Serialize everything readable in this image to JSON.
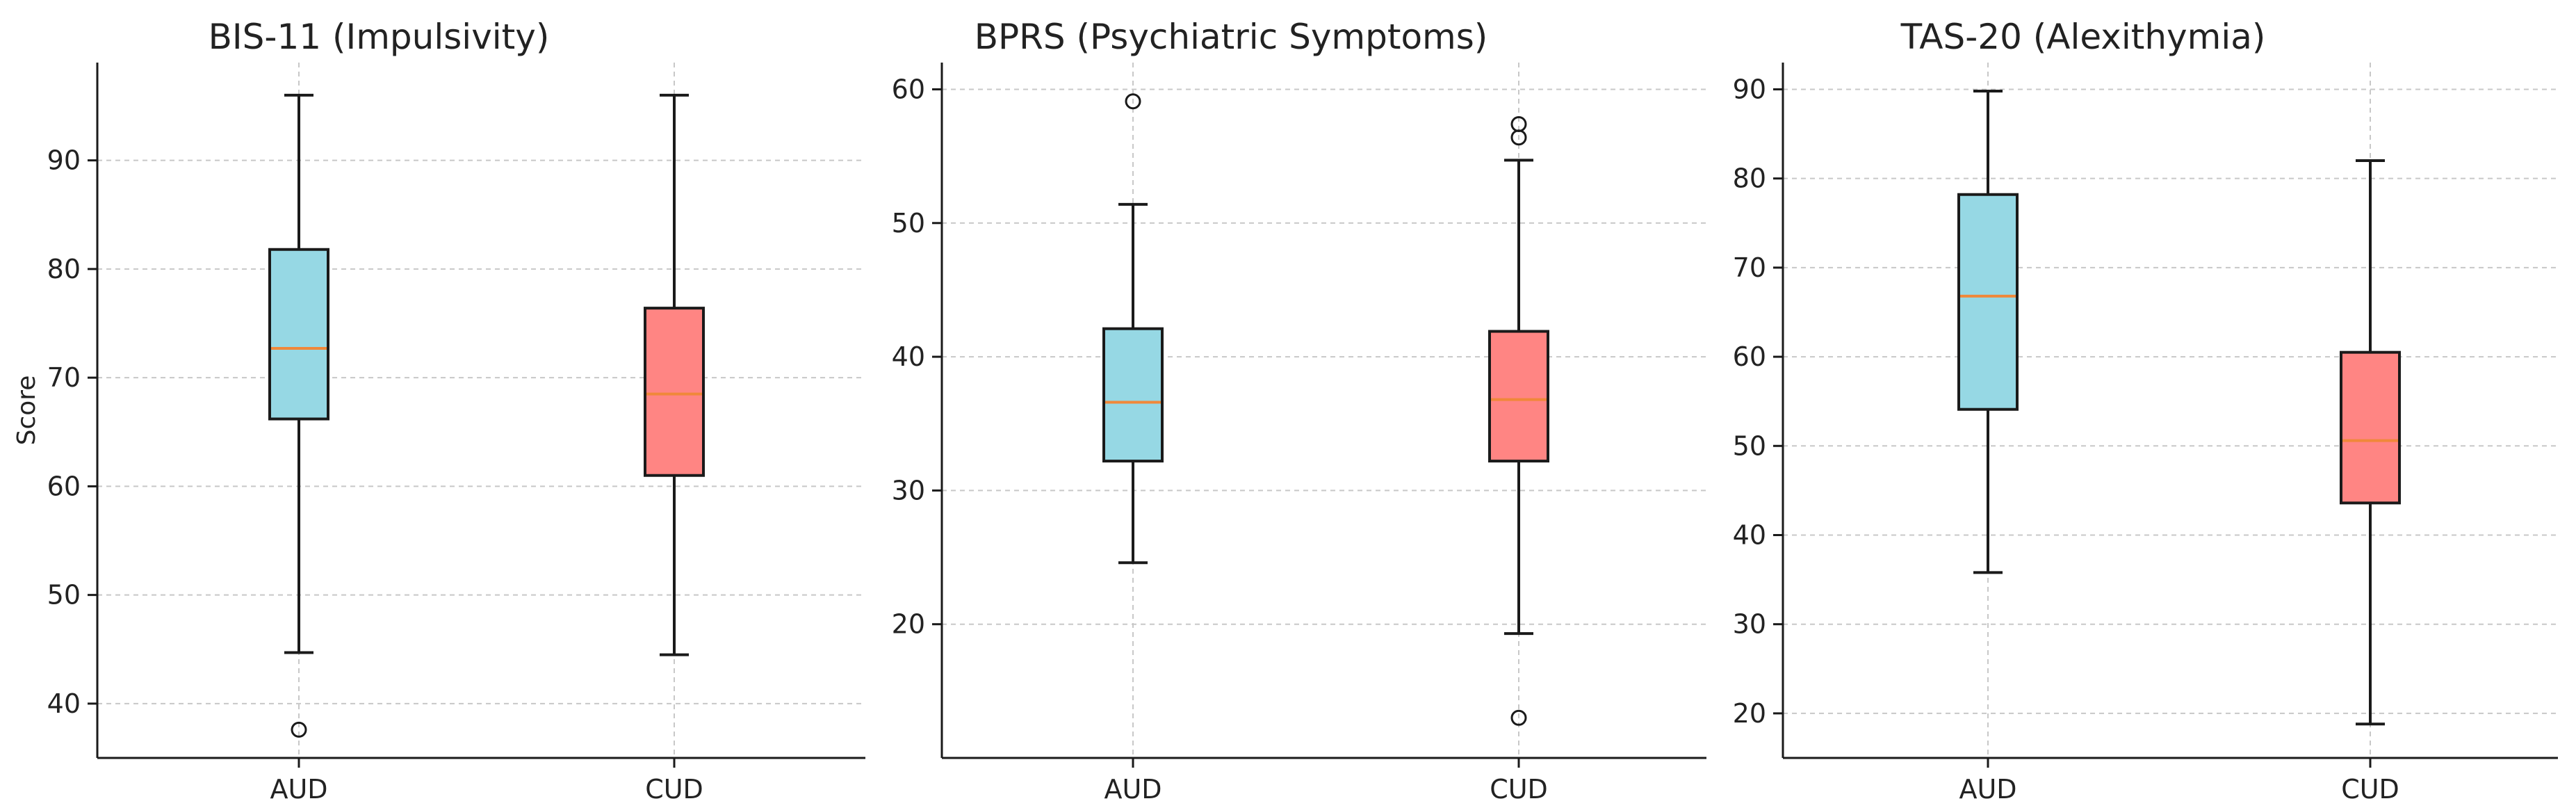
{
  "chart_data": [
    {
      "type": "box",
      "title": "BIS-11 (Impulsivity)",
      "xlabel": "",
      "ylabel": "Score",
      "ylim": [
        35,
        99
      ],
      "yticks": [
        40,
        50,
        60,
        70,
        80,
        90
      ],
      "grid": true,
      "categories": [
        "AUD",
        "CUD"
      ],
      "boxes": [
        {
          "label": "AUD",
          "whisker_low": 44.7,
          "q1": 66.2,
          "median": 72.7,
          "q3": 81.8,
          "whisker_high": 96.0,
          "outliers": [
            37.6
          ],
          "color": "#96d8e4"
        },
        {
          "label": "CUD",
          "whisker_low": 44.5,
          "q1": 61.0,
          "median": 68.5,
          "q3": 76.4,
          "whisker_high": 96.0,
          "outliers": [],
          "color": "#ff8583"
        }
      ]
    },
    {
      "type": "box",
      "title": "BPRS (Psychiatric Symptoms)",
      "xlabel": "",
      "ylabel": "",
      "ylim": [
        10,
        62
      ],
      "yticks": [
        20,
        30,
        40,
        50,
        60
      ],
      "grid": true,
      "categories": [
        "AUD",
        "CUD"
      ],
      "boxes": [
        {
          "label": "AUD",
          "whisker_low": 24.6,
          "q1": 32.2,
          "median": 36.6,
          "q3": 42.1,
          "whisker_high": 51.4,
          "outliers": [
            59.1
          ],
          "color": "#96d8e4"
        },
        {
          "label": "CUD",
          "whisker_low": 19.3,
          "q1": 32.2,
          "median": 36.8,
          "q3": 41.9,
          "whisker_high": 54.7,
          "outliers": [
            57.4,
            56.4,
            13.0
          ],
          "color": "#ff8583"
        }
      ]
    },
    {
      "type": "box",
      "title": "TAS-20 (Alexithymia)",
      "xlabel": "",
      "ylabel": "",
      "ylim": [
        15,
        93
      ],
      "yticks": [
        20,
        30,
        40,
        50,
        60,
        70,
        80,
        90
      ],
      "grid": true,
      "categories": [
        "AUD",
        "CUD"
      ],
      "boxes": [
        {
          "label": "AUD",
          "whisker_low": 35.8,
          "q1": 54.1,
          "median": 66.8,
          "q3": 78.2,
          "whisker_high": 89.8,
          "outliers": [],
          "color": "#96d8e4"
        },
        {
          "label": "CUD",
          "whisker_low": 18.8,
          "q1": 43.6,
          "median": 50.6,
          "q3": 60.5,
          "whisker_high": 82.0,
          "outliers": [],
          "color": "#ff8583"
        }
      ]
    }
  ],
  "colors": {
    "median": "#f0883a",
    "edge": "#1a1a1a",
    "grid": "#c8c8c8",
    "axis": "#1a1a1a"
  }
}
